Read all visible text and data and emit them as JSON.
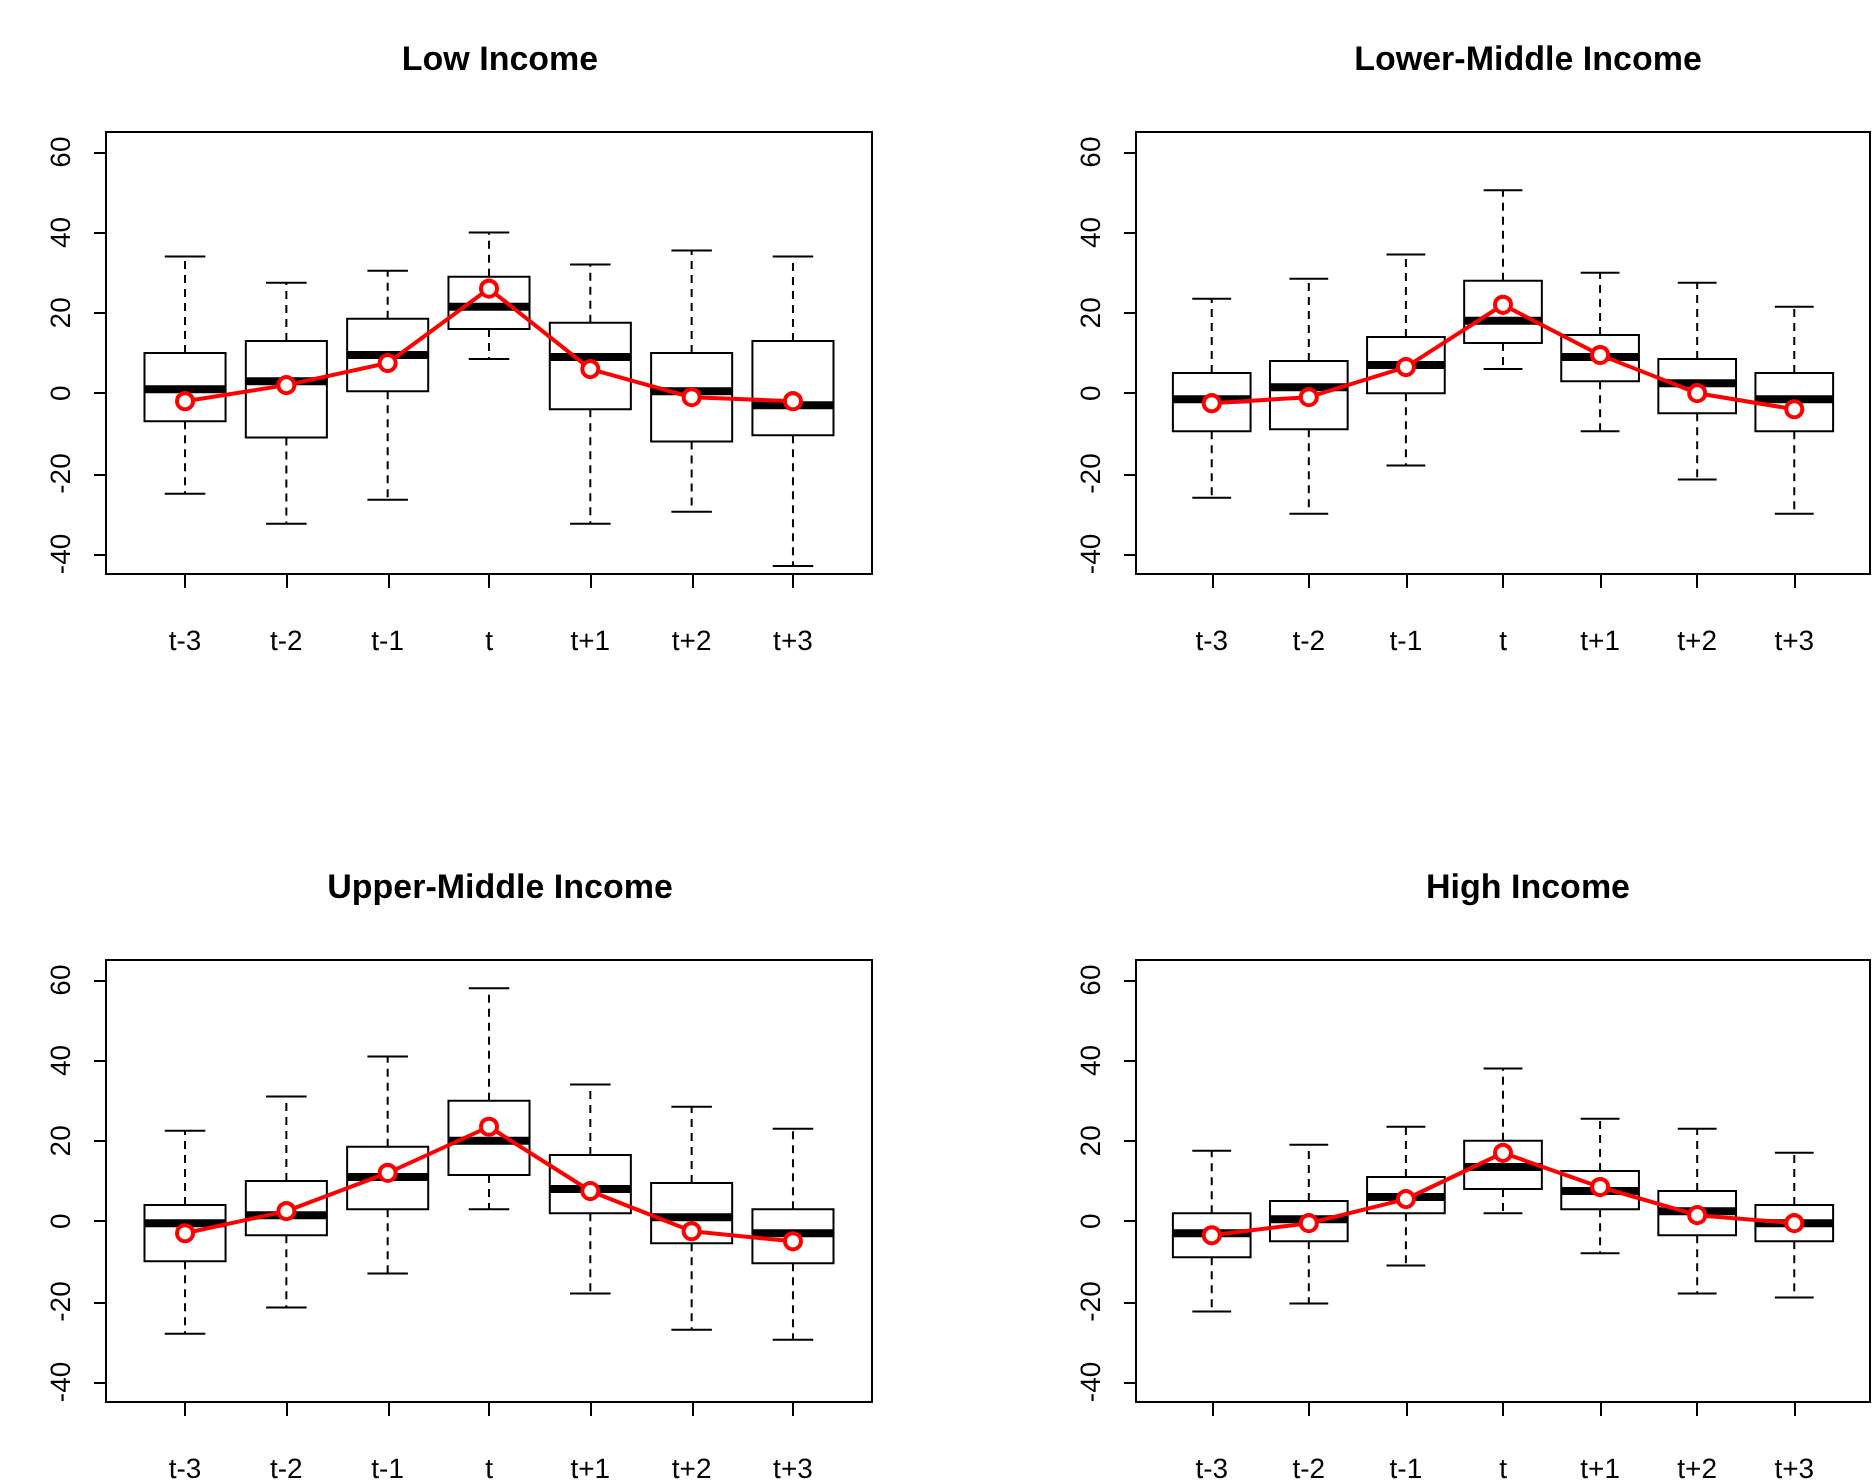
{
  "chart_data": [
    {
      "type": "box",
      "title": "Low Income",
      "categories": [
        "t-3",
        "t-2",
        "t-1",
        "t",
        "t+1",
        "t+2",
        "t+3"
      ],
      "ylim": [
        -45,
        65
      ],
      "yticks": [
        -40,
        -20,
        0,
        20,
        40,
        60
      ],
      "series": [
        {
          "color": "#000000",
          "boxes": [
            {
              "low": -25,
              "q1": -7,
              "median": 1,
              "q3": 10,
              "high": 34
            },
            {
              "low": -32.5,
              "q1": -11,
              "median": 3,
              "q3": 13,
              "high": 27.5
            },
            {
              "low": -26.5,
              "q1": 0.5,
              "median": 9.5,
              "q3": 18.5,
              "high": 30.5
            },
            {
              "low": 8.5,
              "q1": 16,
              "median": 21.5,
              "q3": 29,
              "high": 40
            },
            {
              "low": -32.5,
              "q1": -4,
              "median": 9,
              "q3": 17.5,
              "high": 32
            },
            {
              "low": -29.5,
              "q1": -12,
              "median": 0.5,
              "q3": 10,
              "high": 35.5
            },
            {
              "low": -43,
              "q1": -10.5,
              "median": -3,
              "q3": 13,
              "high": 34
            }
          ]
        },
        {
          "type": "line",
          "color": "#ff0000",
          "marker": "circle",
          "line_style": "solid",
          "values": [
            -2,
            2,
            7.5,
            26,
            6,
            -1,
            -2
          ]
        }
      ]
    },
    {
      "type": "box",
      "title": "Lower-Middle Income",
      "categories": [
        "t-3",
        "t-2",
        "t-1",
        "t",
        "t+1",
        "t+2",
        "t+3"
      ],
      "ylim": [
        -45,
        65
      ],
      "yticks": [
        -40,
        -20,
        0,
        20,
        40,
        60
      ],
      "series": [
        {
          "color": "#000000",
          "boxes": [
            {
              "low": -26,
              "q1": -9.5,
              "median": -1.5,
              "q3": 5,
              "high": 23.5
            },
            {
              "low": -30,
              "q1": -9,
              "median": 1.5,
              "q3": 8,
              "high": 28.5
            },
            {
              "low": -18,
              "q1": 0,
              "median": 7,
              "q3": 14,
              "high": 34.5
            },
            {
              "low": 6,
              "q1": 12.5,
              "median": 18,
              "q3": 28,
              "high": 50.5
            },
            {
              "low": -9.5,
              "q1": 3,
              "median": 9,
              "q3": 14.5,
              "high": 30
            },
            {
              "low": -21.5,
              "q1": -5,
              "median": 2.5,
              "q3": 8.5,
              "high": 27.5
            },
            {
              "low": -30,
              "q1": -9.5,
              "median": -1.5,
              "q3": 5,
              "high": 21.5
            }
          ]
        },
        {
          "type": "line",
          "color": "#ff0000",
          "marker": "circle",
          "line_style": "solid",
          "values": [
            -2.5,
            -1,
            6.5,
            22,
            9.5,
            0,
            -4
          ]
        }
      ]
    },
    {
      "type": "box",
      "title": "Upper-Middle Income",
      "categories": [
        "t-3",
        "t-2",
        "t-1",
        "t",
        "t+1",
        "t+2",
        "t+3"
      ],
      "ylim": [
        -45,
        65
      ],
      "yticks": [
        -40,
        -20,
        0,
        20,
        40,
        60
      ],
      "series": [
        {
          "color": "#000000",
          "boxes": [
            {
              "low": -28,
              "q1": -10,
              "median": -0.5,
              "q3": 4,
              "high": 22.5
            },
            {
              "low": -21.5,
              "q1": -3.5,
              "median": 1.5,
              "q3": 10,
              "high": 31
            },
            {
              "low": -13,
              "q1": 3,
              "median": 11,
              "q3": 18.5,
              "high": 41
            },
            {
              "low": 3,
              "q1": 11.5,
              "median": 20,
              "q3": 30,
              "high": 58
            },
            {
              "low": -18,
              "q1": 2,
              "median": 8,
              "q3": 16.5,
              "high": 34
            },
            {
              "low": -27,
              "q1": -5.5,
              "median": 1,
              "q3": 9.5,
              "high": 28.5
            },
            {
              "low": -29.5,
              "q1": -10.5,
              "median": -3,
              "q3": 3,
              "high": 23
            }
          ]
        },
        {
          "type": "line",
          "color": "#ff0000",
          "marker": "circle",
          "line_style": "solid",
          "values": [
            -3,
            2.5,
            12,
            23.5,
            7.5,
            -2.5,
            -5
          ]
        }
      ]
    },
    {
      "type": "box",
      "title": "High Income",
      "categories": [
        "t-3",
        "t-2",
        "t-1",
        "t",
        "t+1",
        "t+2",
        "t+3"
      ],
      "ylim": [
        -45,
        65
      ],
      "yticks": [
        -40,
        -20,
        0,
        20,
        40,
        60
      ],
      "series": [
        {
          "color": "#000000",
          "boxes": [
            {
              "low": -22.5,
              "q1": -9,
              "median": -3,
              "q3": 2,
              "high": 17.5
            },
            {
              "low": -20.5,
              "q1": -5,
              "median": 0.5,
              "q3": 5,
              "high": 19
            },
            {
              "low": -11,
              "q1": 2,
              "median": 6,
              "q3": 11,
              "high": 23.5
            },
            {
              "low": 2,
              "q1": 8,
              "median": 13.5,
              "q3": 20,
              "high": 38
            },
            {
              "low": -8,
              "q1": 3,
              "median": 7.5,
              "q3": 12.5,
              "high": 25.5
            },
            {
              "low": -18,
              "q1": -3.5,
              "median": 2.5,
              "q3": 7.5,
              "high": 23
            },
            {
              "low": -19,
              "q1": -5,
              "median": -0.5,
              "q3": 4,
              "high": 17
            }
          ]
        },
        {
          "type": "line",
          "color": "#ff0000",
          "marker": "circle",
          "line_style": "solid",
          "values": [
            -3.5,
            -0.5,
            5.5,
            17,
            8.5,
            1.5,
            -0.5
          ]
        }
      ]
    }
  ]
}
